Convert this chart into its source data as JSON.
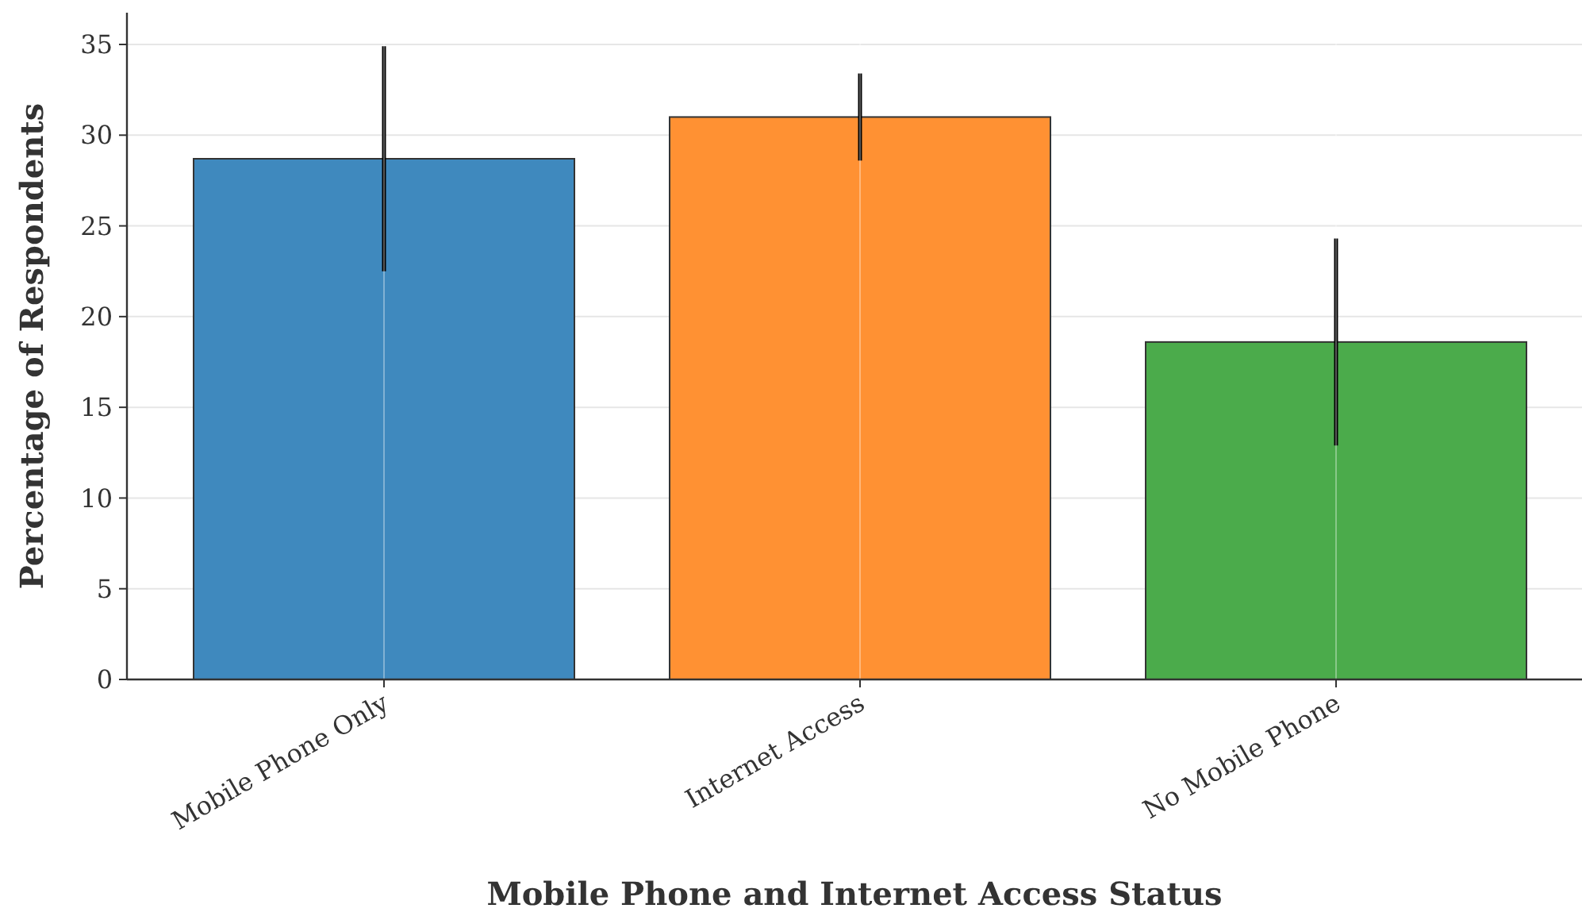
{
  "chart_data": {
    "type": "bar",
    "xlabel": "Mobile Phone and Internet Access Status",
    "ylabel": "Percentage of Respondents",
    "categories": [
      "Mobile Phone Only",
      "Internet Access",
      "No Mobile Phone"
    ],
    "values": [
      28.7,
      31.0,
      18.6
    ],
    "errors": [
      6.2,
      2.4,
      5.7
    ],
    "colors": [
      "#3f89be",
      "#ff9133",
      "#4bab4b"
    ],
    "ylim": [
      0,
      36.75
    ],
    "yticks": [
      0,
      5,
      10,
      15,
      20,
      25,
      30,
      35
    ],
    "grid": true
  }
}
